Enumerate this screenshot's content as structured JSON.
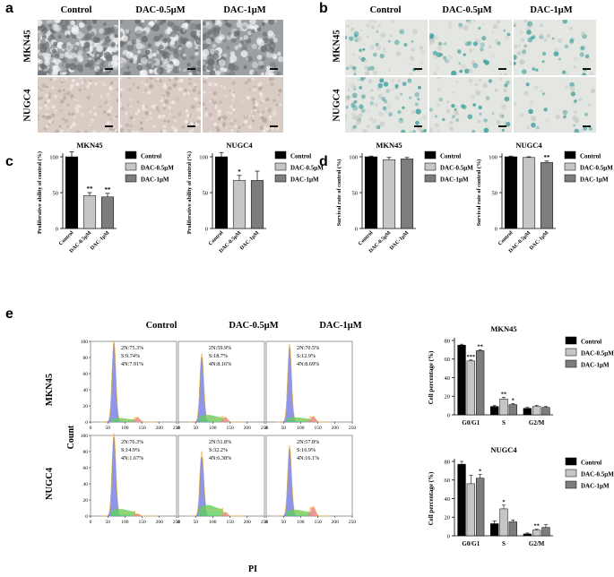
{
  "panels": {
    "a": "a",
    "b": "b",
    "c": "c",
    "d": "d",
    "e": "e"
  },
  "a": {
    "columns": [
      "Control",
      "DAC-0.5μM",
      "DAC-1μM"
    ],
    "rows": [
      "MKN45",
      "NUGC4"
    ],
    "colors": {
      "mkn45_bg": "#9ca0a4",
      "nugc4_bg": "#d8ccc4"
    }
  },
  "b": {
    "columns": [
      "Control",
      "DAC-0.5μM",
      "DAC-1μM"
    ],
    "rows": [
      "MKN45",
      "NUGC4"
    ],
    "colors": {
      "bg": "#e4e6e2",
      "stain": "#3d9e9c"
    }
  },
  "chart_data": [
    {
      "id": "c-mkn45",
      "type": "bar",
      "title": "MKN45",
      "ylabel": "Proliferative ability of control  (%)",
      "ylim": [
        0,
        100
      ],
      "yticks": [
        0,
        50,
        100
      ],
      "categories": [
        "Control",
        "DAC-0.5μM",
        "DAC-1μM"
      ],
      "values": [
        100,
        46,
        44
      ],
      "errors": [
        7,
        4,
        5
      ],
      "significance": [
        "",
        "**",
        "**"
      ],
      "legend": [
        "Control",
        "DAC-0.5μM",
        "DAC-1μM"
      ],
      "colors": [
        "#000000",
        "#c6c6c6",
        "#7d7d7d"
      ],
      "legend_position": "right"
    },
    {
      "id": "c-nugc4",
      "type": "bar",
      "title": "NUGC4",
      "ylabel": "Proliferative ability of control  (%)",
      "ylim": [
        0,
        100
      ],
      "yticks": [
        0,
        50,
        100
      ],
      "categories": [
        "Control",
        "DAC-0.5μM",
        "DAC-1μM"
      ],
      "values": [
        100,
        67,
        67
      ],
      "errors": [
        6,
        7,
        13
      ],
      "significance": [
        "",
        "*",
        ""
      ],
      "legend": [
        "Control",
        "DAC-0.5μM",
        "DAC-1μM"
      ],
      "colors": [
        "#000000",
        "#c6c6c6",
        "#7d7d7d"
      ],
      "legend_position": "right"
    },
    {
      "id": "d-mkn45",
      "type": "bar",
      "title": "MKN45",
      "ylabel": "Survival rate of control  (%)",
      "ylim": [
        0,
        100
      ],
      "yticks": [
        0,
        50,
        100
      ],
      "categories": [
        "Control",
        "DAC-0.5μM",
        "DAC-1μM"
      ],
      "values": [
        100,
        96,
        97
      ],
      "errors": [
        1,
        3,
        2
      ],
      "significance": [
        "",
        "",
        ""
      ],
      "legend": [
        "Control",
        "DAC-0.5μM",
        "DAC-1μM"
      ],
      "colors": [
        "#000000",
        "#c6c6c6",
        "#7d7d7d"
      ],
      "legend_position": "right"
    },
    {
      "id": "d-nugc4",
      "type": "bar",
      "title": "NUGC4",
      "ylabel": "Survival rate of control  (%)",
      "ylim": [
        0,
        100
      ],
      "yticks": [
        0,
        50,
        100
      ],
      "categories": [
        "Control",
        "DAC-0.5μM",
        "DAC-1μM"
      ],
      "values": [
        100,
        99,
        92
      ],
      "errors": [
        1,
        1,
        2
      ],
      "significance": [
        "",
        "",
        "**"
      ],
      "legend": [
        "Control",
        "DAC-0.5μM",
        "DAC-1μM"
      ],
      "colors": [
        "#000000",
        "#c6c6c6",
        "#7d7d7d"
      ],
      "legend_position": "right"
    },
    {
      "id": "e-hist",
      "type": "area",
      "columns": [
        "Control",
        "DAC-0.5μM",
        "DAC-1μM"
      ],
      "rows": [
        "MKN45",
        "NUGC4"
      ],
      "xlabel": "PI",
      "ylabel": "Count",
      "xlim": [
        0,
        250
      ],
      "xticks": [
        0,
        50,
        100,
        150,
        200,
        250
      ],
      "ylim": [
        0,
        100
      ],
      "yticks": [
        0,
        20,
        40,
        60,
        80,
        100
      ],
      "stats": [
        [
          [
            "2N:75.3%",
            "S:9.74%",
            "4N:7.91%"
          ],
          [
            "2N:59.9%",
            "S:18.7%",
            "4N:8.16%"
          ],
          [
            "2N:70.5%",
            "S:12.9%",
            "4N:8.69%"
          ]
        ],
        [
          [
            "2N:76.3%",
            "S:14.9%",
            "4N:1.67%"
          ],
          [
            "2N:51.8%",
            "S:32.2%",
            "4N:6.38%"
          ],
          [
            "2N:57.8%",
            "S:16.9%",
            "4N:16.1%"
          ]
        ]
      ],
      "colors": {
        "g1": "#7a84e6",
        "s": "#5fcf5f",
        "g2": "#e98a8a",
        "fit": "#f0b840"
      }
    },
    {
      "id": "e-mkn45",
      "type": "bar",
      "title": "MKN45",
      "ylabel": "Cell percentage  (%)",
      "ylim": [
        0,
        80
      ],
      "yticks": [
        0,
        20,
        40,
        60,
        80
      ],
      "categories": [
        "G0/G1",
        "S",
        "G2/M"
      ],
      "series": [
        {
          "name": "Control",
          "values": [
            75,
            9,
            7
          ],
          "errors": [
            1,
            1,
            1
          ],
          "significance": [
            "",
            "",
            ""
          ]
        },
        {
          "name": "DAC-0.5μM",
          "values": [
            58,
            17,
            9
          ],
          "errors": [
            1,
            2,
            1
          ],
          "significance": [
            "***",
            "**",
            ""
          ]
        },
        {
          "name": "DAC-1μM",
          "values": [
            69,
            11,
            8
          ],
          "errors": [
            1,
            1,
            1
          ],
          "significance": [
            "**",
            "*",
            ""
          ]
        }
      ],
      "colors": [
        "#000000",
        "#c6c6c6",
        "#7d7d7d"
      ],
      "legend_position": "right"
    },
    {
      "id": "e-nugc4",
      "type": "bar",
      "title": "NUGC4",
      "ylabel": "Cell percentage  (%)",
      "ylim": [
        0,
        80
      ],
      "yticks": [
        0,
        20,
        40,
        60,
        80
      ],
      "categories": [
        "G0/G1",
        "S",
        "G2/M"
      ],
      "series": [
        {
          "name": "Control",
          "values": [
            77,
            13,
            2
          ],
          "errors": [
            3,
            3,
            1
          ],
          "significance": [
            "",
            "",
            ""
          ]
        },
        {
          "name": "DAC-0.5μM",
          "values": [
            56,
            29,
            6
          ],
          "errors": [
            9,
            4,
            1
          ],
          "significance": [
            "",
            "*",
            "**"
          ]
        },
        {
          "name": "DAC-1μM",
          "values": [
            62,
            15,
            9
          ],
          "errors": [
            4,
            2,
            3
          ],
          "significance": [
            "*",
            "",
            ""
          ]
        }
      ],
      "colors": [
        "#000000",
        "#c6c6c6",
        "#7d7d7d"
      ],
      "legend_position": "right"
    }
  ]
}
